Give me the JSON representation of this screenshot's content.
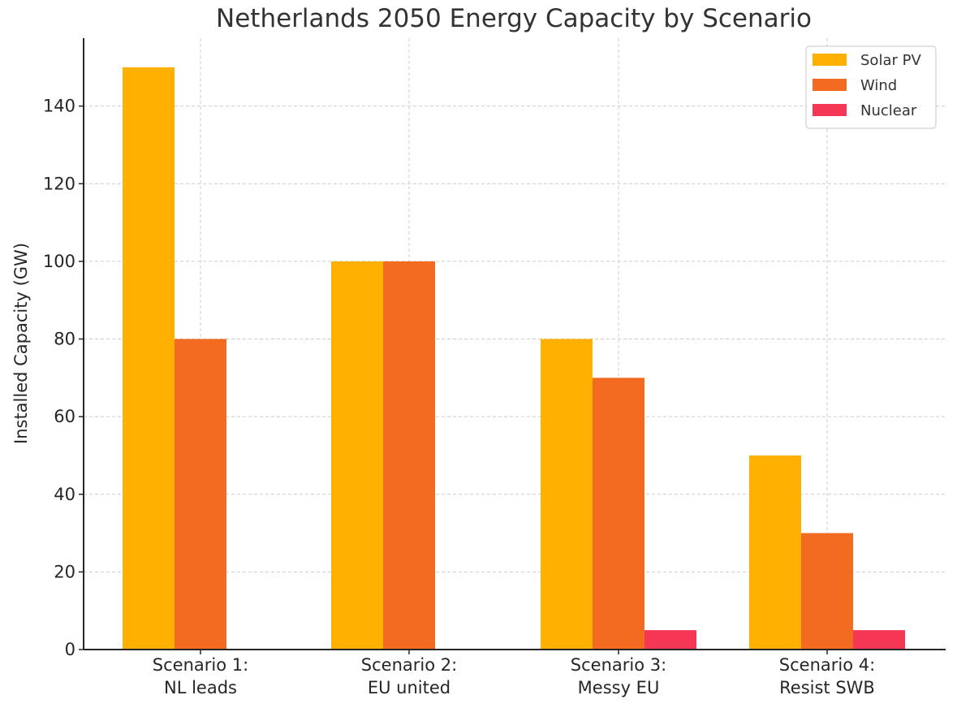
{
  "chart_data": {
    "type": "bar",
    "title": "Netherlands 2050 Energy Capacity by Scenario",
    "xlabel": "",
    "ylabel": "Installed Capacity (GW)",
    "categories": [
      [
        "Scenario 1:",
        "NL leads"
      ],
      [
        "Scenario 2:",
        "EU united"
      ],
      [
        "Scenario 3:",
        "Messy EU"
      ],
      [
        "Scenario 4:",
        "Resist SWB"
      ]
    ],
    "series": [
      {
        "name": "Solar PV",
        "color": "#FFB000",
        "values": [
          150,
          100,
          80,
          50
        ]
      },
      {
        "name": "Wind",
        "color": "#F26B21",
        "values": [
          80,
          100,
          70,
          30
        ]
      },
      {
        "name": "Nuclear",
        "color": "#F63655",
        "values": [
          0,
          0,
          5,
          5
        ]
      }
    ],
    "ylim": [
      0,
      157.5
    ],
    "yticks": [
      0,
      20,
      40,
      60,
      80,
      100,
      120,
      140
    ],
    "grid": true,
    "legend": "top-right"
  }
}
